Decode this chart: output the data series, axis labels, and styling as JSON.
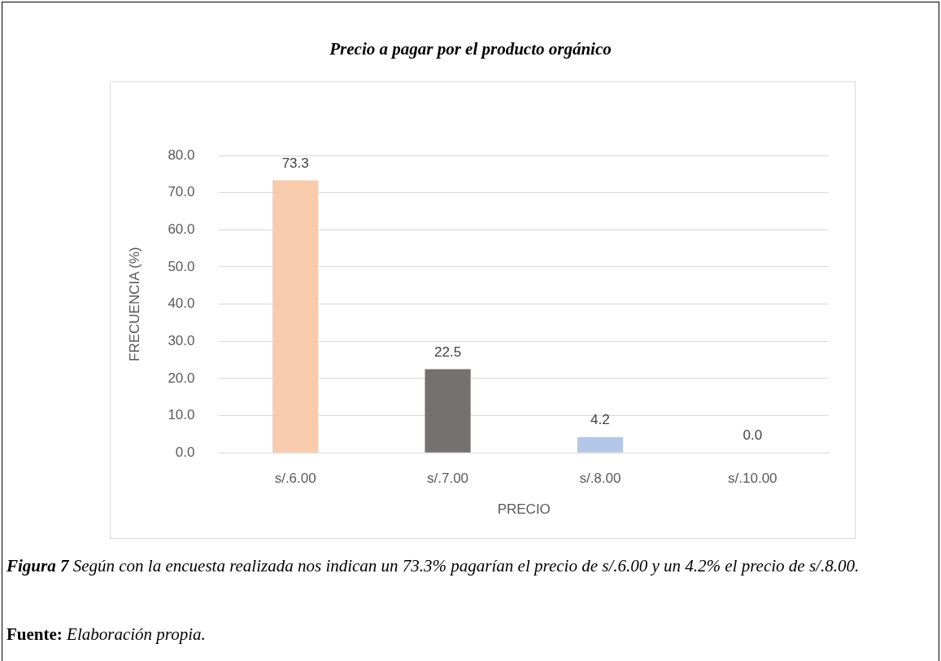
{
  "chart_data": {
    "type": "bar",
    "title": "Precio a pagar por el producto orgánico",
    "xlabel": "PRECIO",
    "ylabel": "FRECUENCIA (%)",
    "categories": [
      "s/.6.00",
      "s/.7.00",
      "s/.8.00",
      "s/.10.00"
    ],
    "values": [
      73.3,
      22.5,
      4.2,
      0.0
    ],
    "colors": [
      "#f8cbad",
      "#767171",
      "#b4c7e7",
      "#a9a9a9"
    ],
    "value_labels": [
      "73.3",
      "22.5",
      "4.2",
      "0.0"
    ],
    "ylim": [
      0,
      80
    ],
    "yticks": [
      {
        "value": 0,
        "label": "0.0"
      },
      {
        "value": 10,
        "label": "10.0"
      },
      {
        "value": 20,
        "label": "20.0"
      },
      {
        "value": 30,
        "label": "30.0"
      },
      {
        "value": 40,
        "label": "40.0"
      },
      {
        "value": 50,
        "label": "50.0"
      },
      {
        "value": 60,
        "label": "60.0"
      },
      {
        "value": 70,
        "label": "70.0"
      },
      {
        "value": 80,
        "label": "80.0"
      }
    ],
    "grid": "y",
    "legend": false,
    "annotations": [
      "Figura 7",
      "Según con la encuesta realizada nos indican un 73.3% pagarían el precio de s/.6.00 y un 4.2% el precio de s/.8.00.",
      "Fuente:",
      "Elaboración propia."
    ]
  }
}
